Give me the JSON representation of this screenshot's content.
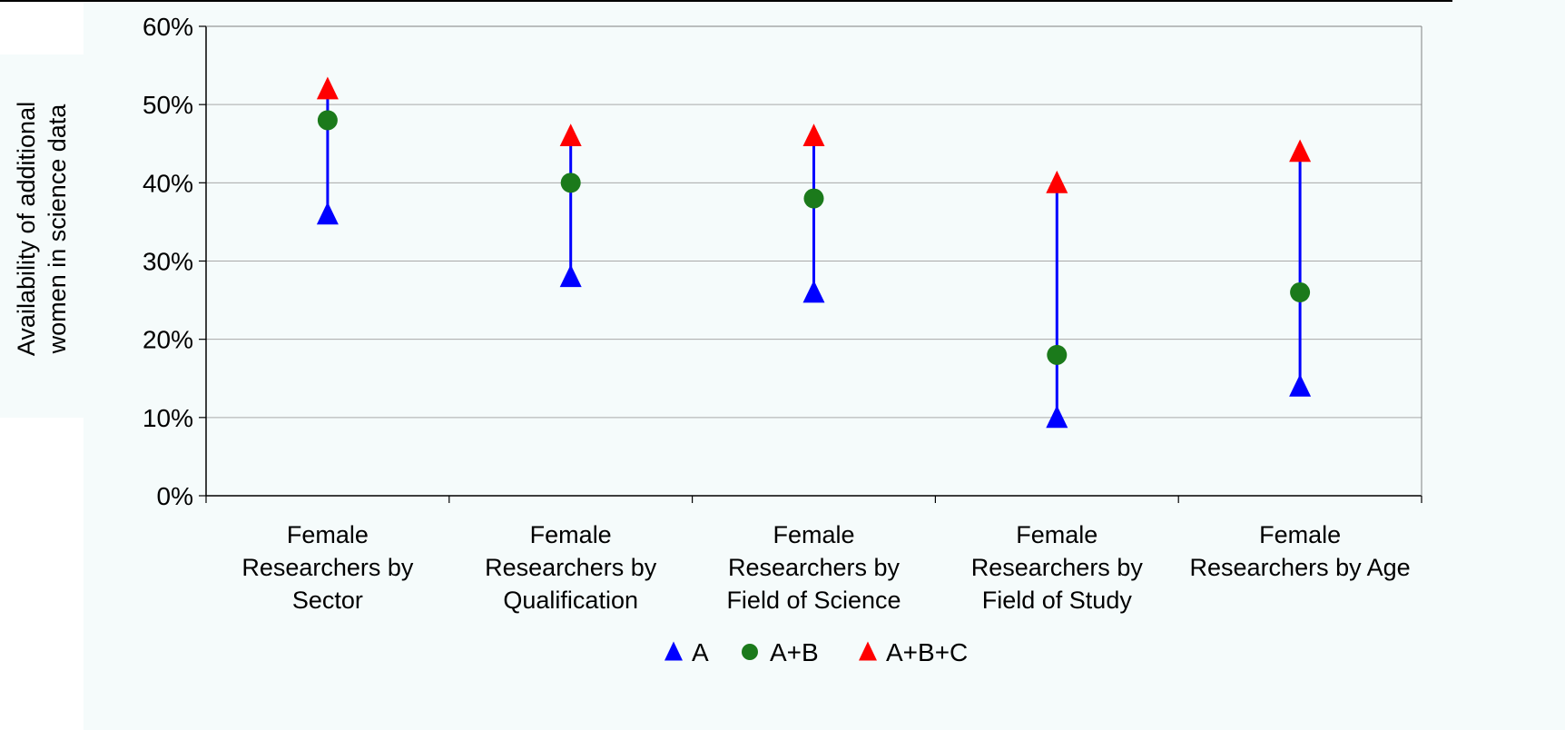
{
  "chart_data": {
    "type": "scatter",
    "subtype": "range",
    "title": "",
    "xlabel": "",
    "ylabel": "Availability of additional women in science data",
    "ylabel_lines": [
      "Availability of additional",
      "women in science data"
    ],
    "ylim": [
      0,
      60
    ],
    "yticks": [
      "0%",
      "10%",
      "20%",
      "30%",
      "40%",
      "50%",
      "60%"
    ],
    "grid": true,
    "legend_position": "bottom",
    "categories": [
      "Female Researchers by Sector",
      "Female Researchers by Qualification",
      "Female Researchers by Field of Science",
      "Female Researchers by Field of Study",
      "Female Researchers by Age"
    ],
    "category_lines": [
      [
        "Female",
        "Researchers by",
        "Sector"
      ],
      [
        "Female",
        "Researchers by",
        "Qualification"
      ],
      [
        "Female",
        "Researchers by",
        "Field of Science"
      ],
      [
        "Female",
        "Researchers by",
        "Field of Study"
      ],
      [
        "Female",
        "Researchers by Age"
      ]
    ],
    "series": [
      {
        "name": "A",
        "marker": "triangle",
        "color": "#0000FF",
        "values": [
          36,
          28,
          26,
          10,
          14
        ]
      },
      {
        "name": "A+B",
        "marker": "circle",
        "color": "#1B7A1B",
        "values": [
          48,
          40,
          38,
          18,
          26
        ]
      },
      {
        "name": "A+B+C",
        "marker": "triangle",
        "color": "#FF0000",
        "values": [
          52,
          46,
          46,
          40,
          44
        ]
      }
    ],
    "range_line_color": "#0000FF",
    "plot_background": "#F5FBFB",
    "gridline_color": "#A9A9A9"
  }
}
